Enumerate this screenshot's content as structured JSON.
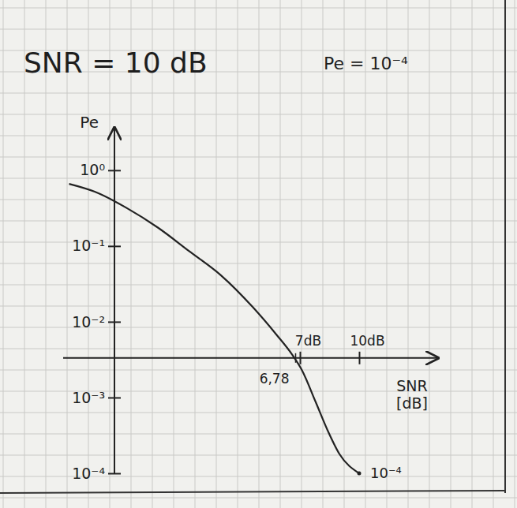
{
  "chart_data": {
    "type": "line",
    "title": "SNR = 10 dB",
    "subtitle": "Pe = 10⁻⁴",
    "x_label": "SNR [dB]",
    "y_label": "Pe",
    "log": "y",
    "color": "#222222",
    "x": [
      -4.7,
      -3.4,
      -1.8,
      -0.2,
      1.4,
      3.0,
      4.6,
      5.8,
      6.6,
      7.1,
      7.8,
      8.4,
      9.0,
      10.0
    ],
    "values": [
      0.66,
      0.52,
      0.32,
      0.175,
      0.085,
      0.041,
      0.0157,
      0.0068,
      0.0037,
      0.0023,
      0.00087,
      0.00037,
      0.00018,
      0.0001
    ],
    "xlim": [
      -5,
      14
    ],
    "ylim": [
      0.0001,
      3
    ],
    "xticks": [
      {
        "value": 7,
        "label": "7dB"
      },
      {
        "value": 10,
        "label": "10dB"
      }
    ],
    "yticks": [
      {
        "value": 1,
        "label": "10⁰"
      },
      {
        "value": 0.1,
        "label": "10⁻¹"
      },
      {
        "value": 0.01,
        "label": "10⁻²"
      },
      {
        "value": 0.001,
        "label": "10⁻³"
      },
      {
        "value": 0.0001,
        "label": "10⁻⁴"
      }
    ],
    "annotations": [
      {
        "text": "6,78",
        "x": 6.78
      },
      {
        "text": "10⁻⁴",
        "x": 10,
        "y": 0.0001
      }
    ]
  }
}
